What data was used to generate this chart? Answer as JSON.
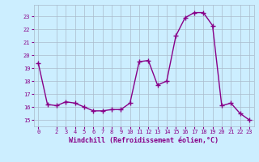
{
  "x": [
    0,
    1,
    2,
    3,
    4,
    5,
    6,
    7,
    8,
    9,
    10,
    11,
    12,
    13,
    14,
    15,
    16,
    17,
    18,
    19,
    20,
    21,
    22,
    23
  ],
  "y": [
    19.4,
    16.2,
    16.1,
    16.4,
    16.3,
    16.0,
    15.7,
    15.7,
    15.8,
    15.8,
    16.3,
    19.5,
    19.6,
    17.7,
    18.0,
    21.5,
    22.9,
    23.3,
    23.3,
    22.3,
    16.1,
    16.3,
    15.5,
    15.0
  ],
  "line_color": "#880088",
  "marker": "+",
  "marker_size": 4,
  "bg_color": "#cceeff",
  "grid_color": "#aabbcc",
  "xlabel": "Windchill (Refroidissement éolien,°C)",
  "ylabel_ticks": [
    15,
    16,
    17,
    18,
    19,
    20,
    21,
    22,
    23
  ],
  "xlim": [
    -0.5,
    23.5
  ],
  "ylim": [
    14.5,
    23.9
  ],
  "xticks": [
    0,
    2,
    3,
    4,
    5,
    6,
    7,
    8,
    9,
    10,
    11,
    12,
    13,
    14,
    15,
    16,
    17,
    18,
    19,
    20,
    21,
    22,
    23
  ],
  "tick_color": "#880088",
  "label_color": "#880088",
  "font": "monospace",
  "tick_fontsize": 5,
  "xlabel_fontsize": 6,
  "linewidth": 1.0,
  "markeredgewidth": 1.0
}
